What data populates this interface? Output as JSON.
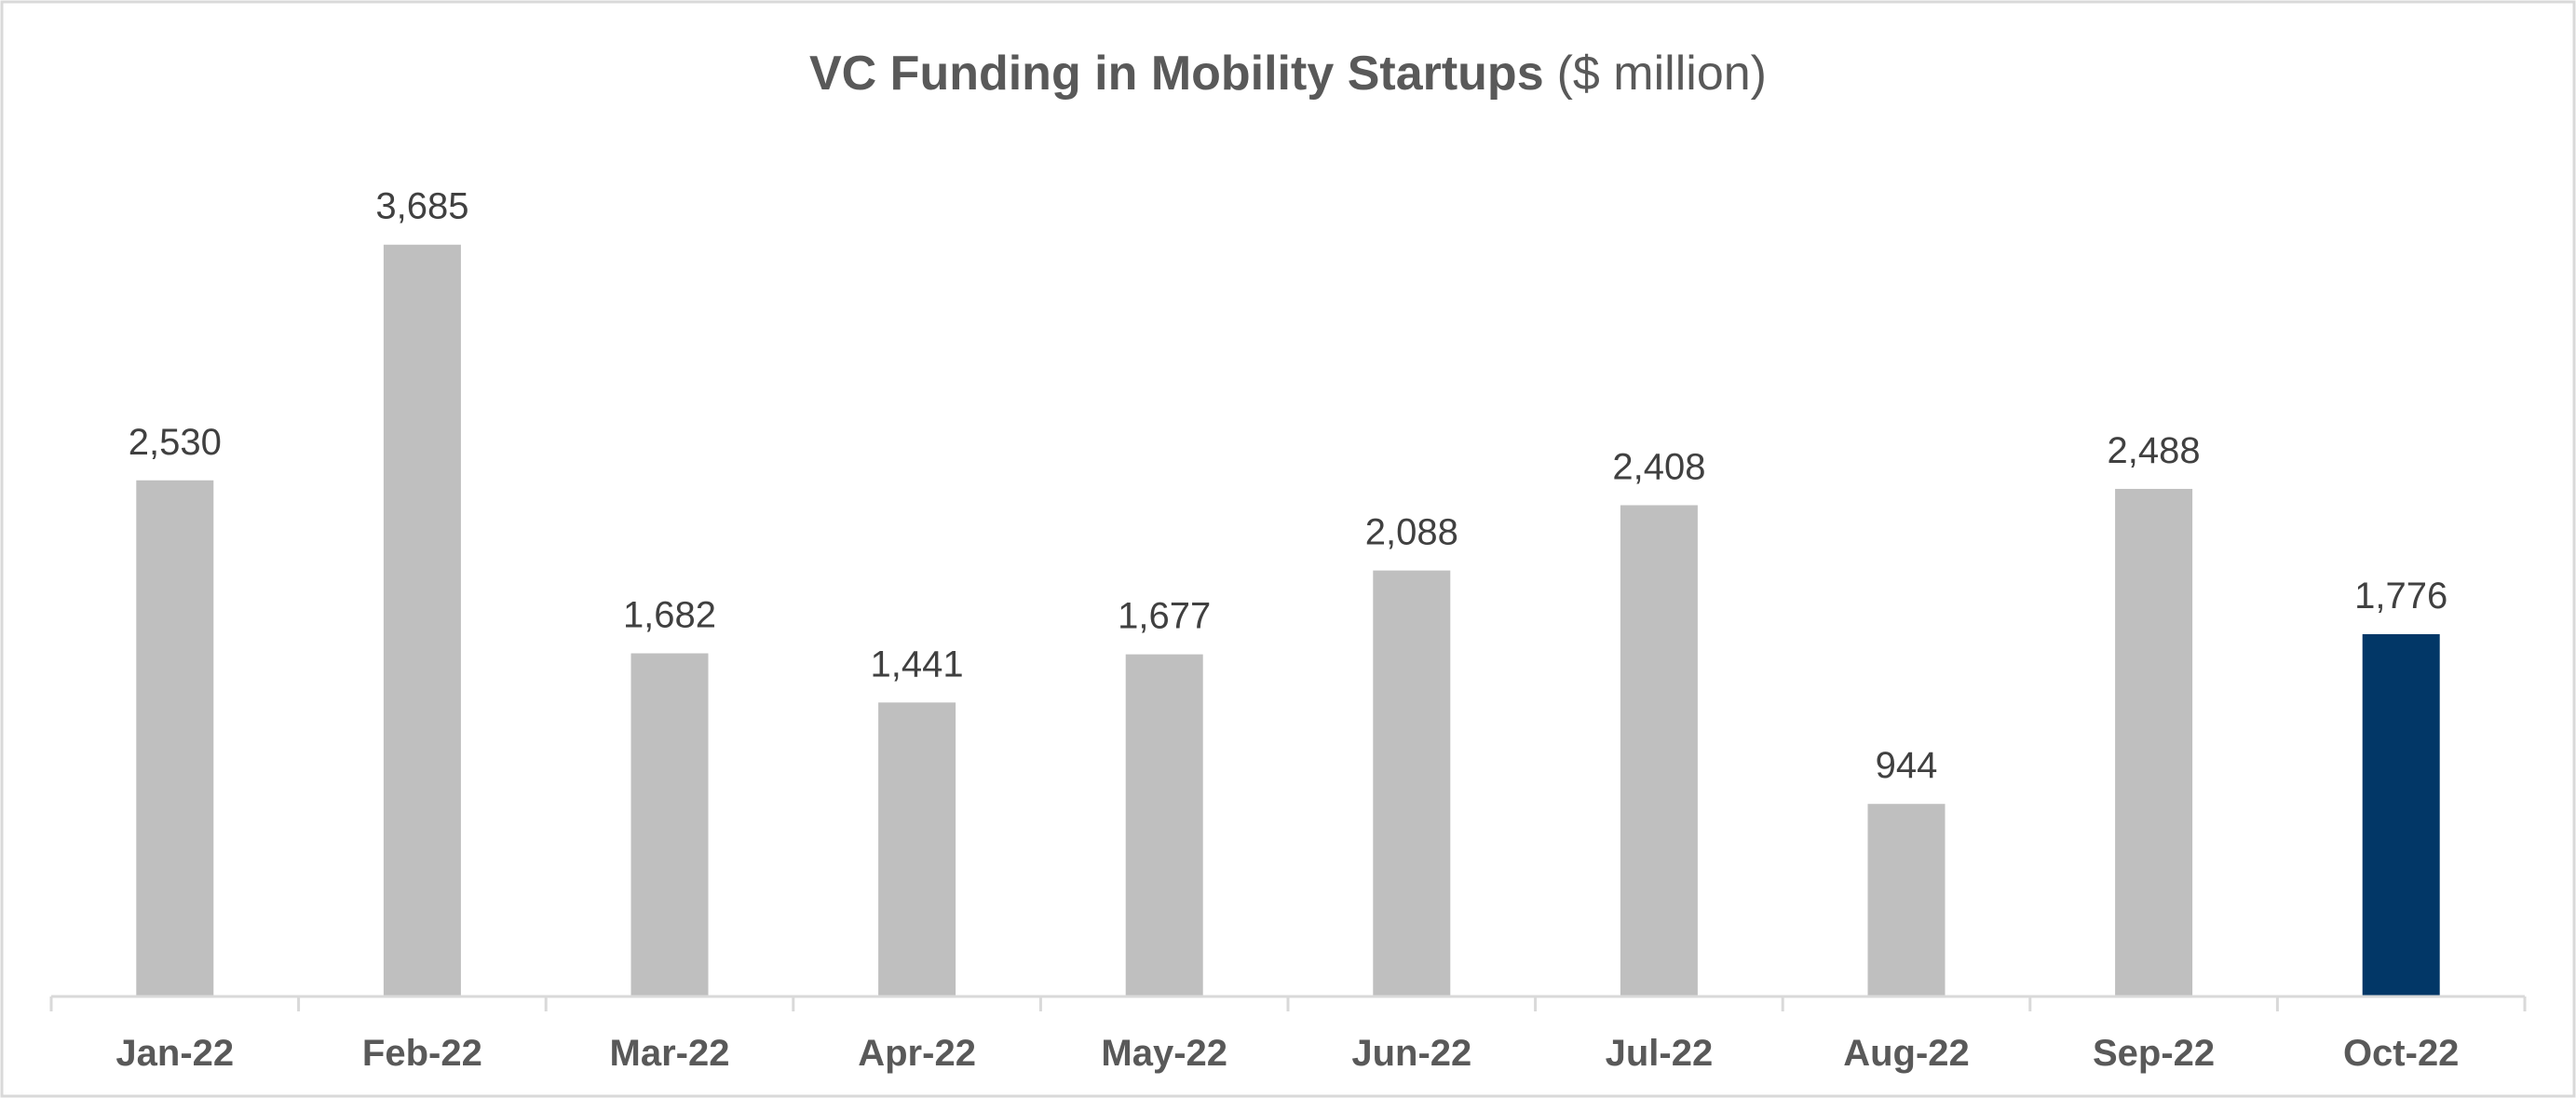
{
  "chart_data": {
    "type": "bar",
    "title": "VC Funding in Mobility Startups",
    "title_unit": "($ million)",
    "xlabel": "",
    "ylabel": "",
    "categories": [
      "Jan-22",
      "Feb-22",
      "Mar-22",
      "Apr-22",
      "May-22",
      "Jun-22",
      "Jul-22",
      "Aug-22",
      "Sep-22",
      "Oct-22"
    ],
    "values": [
      2530,
      3685,
      1682,
      1441,
      1677,
      2088,
      2408,
      944,
      2488,
      1776
    ],
    "data_labels": [
      "2,530",
      "3,685",
      "1,682",
      "1,441",
      "1,677",
      "2,088",
      "2,408",
      "944",
      "2,488",
      "1,776"
    ],
    "ylim": [
      0,
      4300
    ],
    "grid": false,
    "legend": "none",
    "colors": {
      "default": "#BFBFBF",
      "highlight": "#023767",
      "highlight_category": "Oct-22"
    }
  }
}
